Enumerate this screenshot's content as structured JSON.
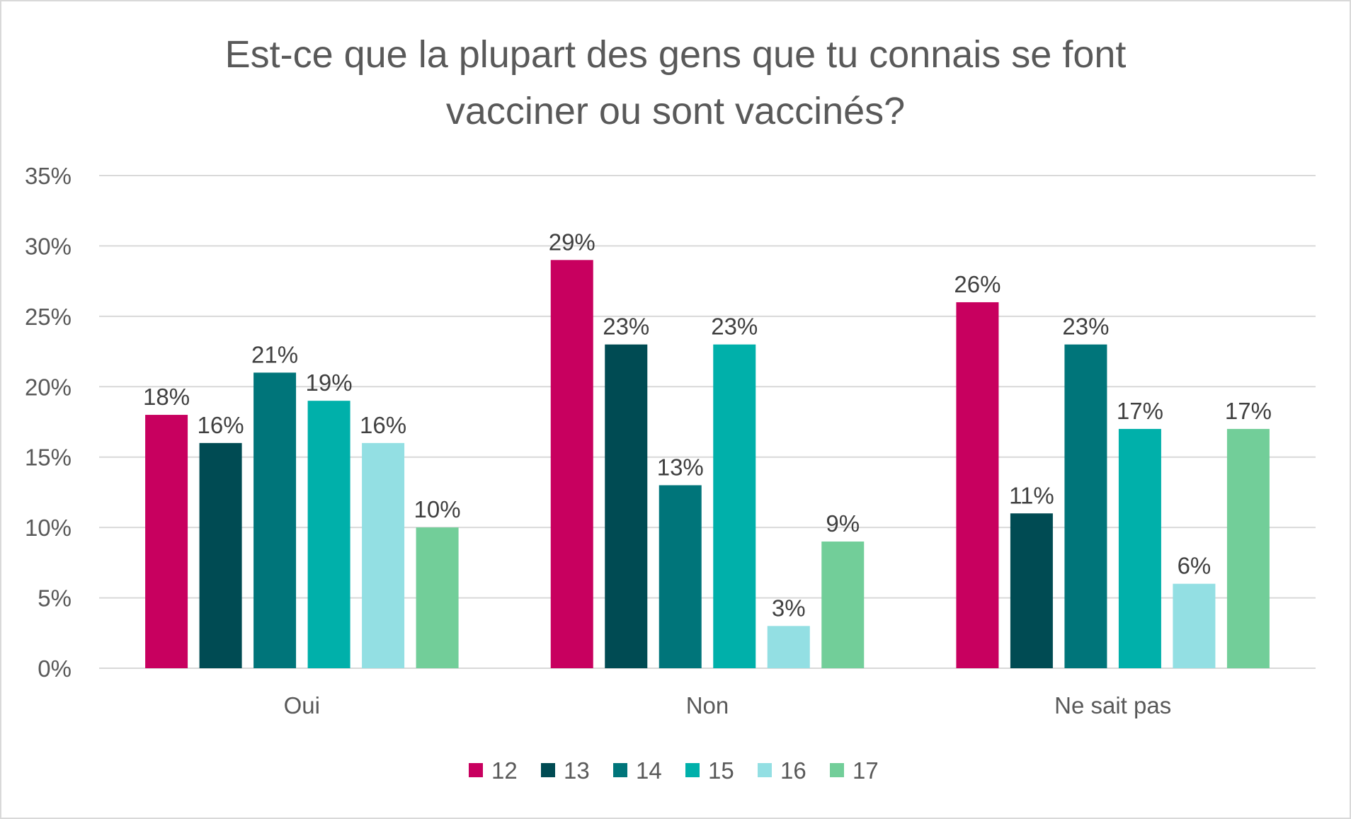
{
  "chart_data": {
    "type": "bar",
    "title": "Est-ce que la plupart des gens que tu connais se font vacciner ou sont vaccinés?",
    "title_lines": [
      "Est-ce que la plupart des gens que tu connais se font",
      "vacciner ou sont vaccinés?"
    ],
    "categories": [
      "Oui",
      "Non",
      "Ne sait pas"
    ],
    "series": [
      {
        "name": "12",
        "color": "#c8005f",
        "values": [
          18,
          29,
          26
        ],
        "labels": [
          "18%",
          "29%",
          "26%"
        ]
      },
      {
        "name": "13",
        "color": "#004b53",
        "values": [
          16,
          23,
          11
        ],
        "labels": [
          "16%",
          "23%",
          "11%"
        ]
      },
      {
        "name": "14",
        "color": "#00757a",
        "values": [
          21,
          13,
          23
        ],
        "labels": [
          "21%",
          "13%",
          "23%"
        ]
      },
      {
        "name": "15",
        "color": "#00b0aa",
        "values": [
          19,
          23,
          17
        ],
        "labels": [
          "19%",
          "23%",
          "17%"
        ]
      },
      {
        "name": "16",
        "color": "#93dfe3",
        "values": [
          16,
          3,
          6
        ],
        "labels": [
          "16%",
          "3%",
          "6%"
        ]
      },
      {
        "name": "17",
        "color": "#72ce99",
        "values": [
          10,
          9,
          17
        ],
        "labels": [
          "10%",
          "9%",
          "17%"
        ]
      }
    ],
    "ylim": [
      0,
      35
    ],
    "yticks": [
      0,
      5,
      10,
      15,
      20,
      25,
      30,
      35
    ],
    "ytick_labels": [
      "0%",
      "5%",
      "10%",
      "15%",
      "20%",
      "25%",
      "30%",
      "35%"
    ],
    "xlabel": "",
    "ylabel": "",
    "grid": true,
    "legend": "bottom"
  }
}
